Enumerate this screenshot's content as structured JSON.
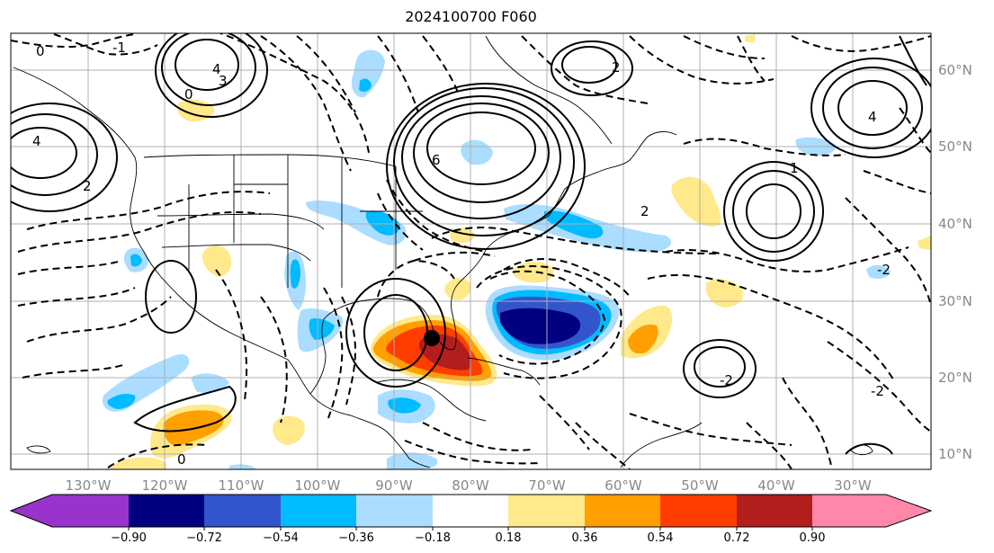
{
  "title": "2024100700 F060",
  "lat_labels": [
    "60°N",
    "50°N",
    "40°N",
    "30°N",
    "20°N",
    "10°N"
  ],
  "lon_labels": [
    "130°W",
    "120°W",
    "110°W",
    "100°W",
    "90°W",
    "80°W",
    "70°W",
    "60°W",
    "50°W",
    "40°W",
    "30°W"
  ],
  "colorbar": {
    "colors": [
      "#9933cc",
      "#000080",
      "#3355cc",
      "#00bbff",
      "#aaddff",
      "#ffffff",
      "#ffe98a",
      "#ff9f00",
      "#ff3d00",
      "#b21e1e",
      "#ff88aa"
    ],
    "tick_labels": [
      "−0.90",
      "−0.72",
      "−0.54",
      "−0.36",
      "−0.18",
      "0.18",
      "0.36",
      "0.54",
      "0.72",
      "0.90"
    ]
  },
  "contour_labels": [
    "0",
    "0",
    "0",
    "2",
    "2",
    "2",
    "4",
    "4",
    "4",
    "-2",
    "-2",
    "-2",
    "-1",
    "6",
    "1",
    "3"
  ],
  "colors": {
    "grid": "#b0b0b0",
    "axis_text": "#888888",
    "marker": "#000000"
  }
}
